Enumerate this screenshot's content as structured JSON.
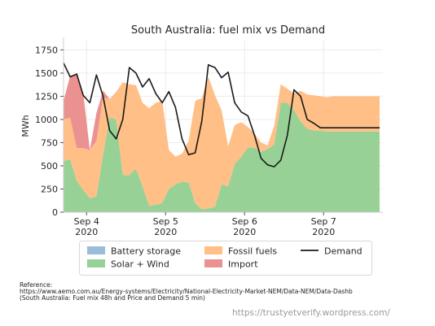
{
  "chart_data": {
    "type": "area",
    "title": "South Australia: fuel mix vs Demand",
    "xlabel": "",
    "ylabel": "MWh",
    "ylim": [
      0,
      1850
    ],
    "xlim": [
      "2020-09-03 17:00",
      "2020-09-07 18:00"
    ],
    "yticks": [
      0,
      250,
      500,
      750,
      1000,
      1250,
      1500,
      1750
    ],
    "xticks": [
      {
        "at": "2020-09-04",
        "label_line1": "Sep 4",
        "label_line2": "2020"
      },
      {
        "at": "2020-09-05",
        "label_line1": "Sep 5",
        "label_line2": "2020"
      },
      {
        "at": "2020-09-06",
        "label_line1": "Sep 6",
        "label_line2": "2020"
      },
      {
        "at": "2020-09-07",
        "label_line1": "Sep 7",
        "label_line2": "2020"
      }
    ],
    "stacked": true,
    "grid": true,
    "legend_position": "bottom",
    "x": [
      "2020-09-03 17:00",
      "2020-09-03 19:00",
      "2020-09-03 21:00",
      "2020-09-03 23:00",
      "2020-09-04 01:00",
      "2020-09-04 03:00",
      "2020-09-04 05:00",
      "2020-09-04 07:00",
      "2020-09-04 09:00",
      "2020-09-04 11:00",
      "2020-09-04 13:00",
      "2020-09-04 15:00",
      "2020-09-04 17:00",
      "2020-09-04 19:00",
      "2020-09-04 21:00",
      "2020-09-04 23:00",
      "2020-09-05 01:00",
      "2020-09-05 03:00",
      "2020-09-05 05:00",
      "2020-09-05 07:00",
      "2020-09-05 09:00",
      "2020-09-05 11:00",
      "2020-09-05 13:00",
      "2020-09-05 15:00",
      "2020-09-05 17:00",
      "2020-09-05 19:00",
      "2020-09-05 21:00",
      "2020-09-05 23:00",
      "2020-09-06 01:00",
      "2020-09-06 03:00",
      "2020-09-06 05:00",
      "2020-09-06 07:00",
      "2020-09-06 09:00",
      "2020-09-06 11:00",
      "2020-09-06 13:00",
      "2020-09-06 15:00",
      "2020-09-06 17:00",
      "2020-09-06 19:00",
      "2020-09-06 21:00",
      "2020-09-06 23:00",
      "2020-09-07 01:00",
      "2020-09-07 03:00",
      "2020-09-07 05:00",
      "2020-09-07 07:00",
      "2020-09-07 09:00",
      "2020-09-07 11:00",
      "2020-09-07 13:00",
      "2020-09-07 15:00",
      "2020-09-07 17:00"
    ],
    "series": [
      {
        "name": "Battery storage",
        "color": "#9dbcd6",
        "values": [
          0,
          0,
          0,
          0,
          0,
          0,
          0,
          0,
          0,
          0,
          0,
          0,
          0,
          0,
          0,
          0,
          0,
          0,
          0,
          0,
          0,
          0,
          0,
          0,
          0,
          0,
          0,
          0,
          0,
          0,
          0,
          0,
          0,
          0,
          0,
          0,
          0,
          0,
          0,
          0,
          0,
          0,
          0,
          0,
          0,
          0,
          0,
          0,
          0
        ]
      },
      {
        "name": "Solar + Wind",
        "color": "#98d196",
        "values": [
          550,
          570,
          340,
          240,
          150,
          170,
          620,
          1020,
          1000,
          400,
          400,
          470,
          280,
          70,
          80,
          100,
          250,
          300,
          330,
          320,
          100,
          30,
          40,
          60,
          300,
          280,
          520,
          600,
          700,
          700,
          650,
          680,
          730,
          1180,
          1180,
          1100,
          980,
          900,
          880,
          880,
          870,
          870,
          870,
          870,
          870,
          870,
          870,
          870,
          870
        ]
      },
      {
        "name": "Fossil fuels",
        "color": "#ffbf86",
        "values": [
          450,
          450,
          350,
          450,
          520,
          600,
          620,
          200,
          300,
          1000,
          980,
          900,
          900,
          1050,
          1100,
          1100,
          420,
          300,
          300,
          450,
          1100,
          1200,
          1420,
          1200,
          800,
          430,
          420,
          370,
          220,
          150,
          100,
          40,
          200,
          200,
          150,
          180,
          330,
          370,
          380,
          370,
          370,
          380,
          380,
          380,
          380,
          380,
          380,
          380,
          380
        ]
      },
      {
        "name": "Import",
        "color": "#eb9191",
        "values": [
          200,
          450,
          800,
          590,
          0,
          300,
          70,
          0,
          0,
          0,
          0,
          0,
          0,
          0,
          0,
          0,
          0,
          0,
          0,
          0,
          0,
          0,
          0,
          0,
          0,
          0,
          0,
          0,
          0,
          0,
          0,
          0,
          0,
          0,
          0,
          0,
          0,
          0,
          0,
          0,
          0,
          0,
          0,
          0,
          0,
          0,
          0,
          0,
          0
        ]
      },
      {
        "name": "Demand",
        "color": "#1a1a1a",
        "kind": "line",
        "values": [
          1610,
          1460,
          1490,
          1260,
          1180,
          1480,
          1250,
          880,
          790,
          1000,
          1560,
          1500,
          1350,
          1440,
          1280,
          1180,
          1300,
          1130,
          790,
          620,
          640,
          980,
          1590,
          1560,
          1450,
          1510,
          1180,
          1080,
          1040,
          830,
          580,
          510,
          490,
          560,
          830,
          1320,
          1250,
          1000,
          960,
          910,
          910,
          910,
          910,
          910,
          910,
          910,
          910,
          910,
          910
        ]
      }
    ]
  },
  "legend": {
    "items": [
      {
        "label": "Battery storage",
        "color": "#9dbcd6",
        "kind": "patch"
      },
      {
        "label": "Fossil fuels",
        "color": "#ffbf86",
        "kind": "patch"
      },
      {
        "label": "Demand",
        "color": "#1a1a1a",
        "kind": "line"
      },
      {
        "label": "Solar + Wind",
        "color": "#98d196",
        "kind": "patch"
      },
      {
        "label": "Import",
        "color": "#eb9191",
        "kind": "patch"
      }
    ]
  },
  "reference": {
    "heading": "Reference:",
    "url": "https://www.aemo.com.au/Energy-systems/Electricity/National-Electricity-Market-NEM/Data-NEM/Data-Dashb",
    "note": "(South Australia: Fuel mix 48h and Price and Demand 5 min)"
  },
  "credit": "https://trustyetverify.wordpress.com/"
}
